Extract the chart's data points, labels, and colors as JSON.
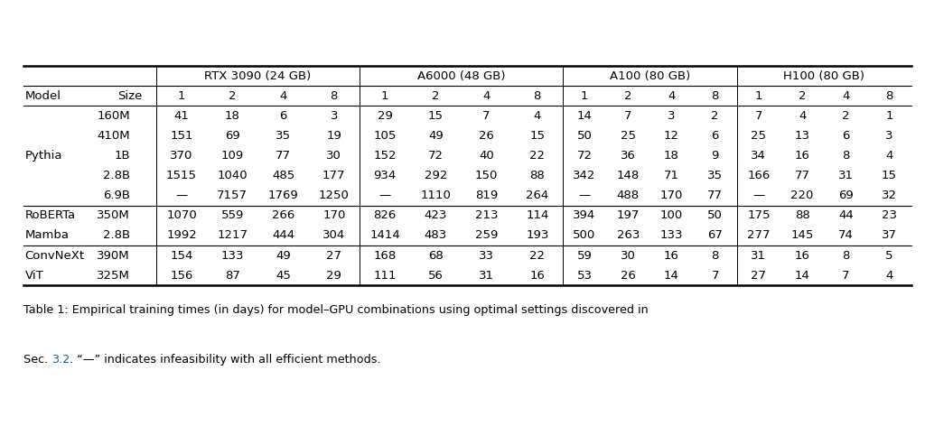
{
  "gpu_headers": [
    "RTX 3090 (24 GB)",
    "A6000 (48 GB)",
    "A100 (80 GB)",
    "H100 (80 GB)"
  ],
  "col_subheaders": [
    "1",
    "2",
    "4",
    "8"
  ],
  "rows": [
    {
      "model": "",
      "size": "160M",
      "vals": [
        "41",
        "18",
        "6",
        "3",
        "29",
        "15",
        "7",
        "4",
        "14",
        "7",
        "3",
        "2",
        "7",
        "4",
        "2",
        "1"
      ]
    },
    {
      "model": "",
      "size": "410M",
      "vals": [
        "151",
        "69",
        "35",
        "19",
        "105",
        "49",
        "26",
        "15",
        "50",
        "25",
        "12",
        "6",
        "25",
        "13",
        "6",
        "3"
      ]
    },
    {
      "model": "Pythia",
      "size": "1B",
      "vals": [
        "370",
        "109",
        "77",
        "30",
        "152",
        "72",
        "40",
        "22",
        "72",
        "36",
        "18",
        "9",
        "34",
        "16",
        "8",
        "4"
      ]
    },
    {
      "model": "",
      "size": "2.8B",
      "vals": [
        "1515",
        "1040",
        "485",
        "177",
        "934",
        "292",
        "150",
        "88",
        "342",
        "148",
        "71",
        "35",
        "166",
        "77",
        "31",
        "15"
      ]
    },
    {
      "model": "",
      "size": "6.9B",
      "vals": [
        "—",
        "7157",
        "1769",
        "1250",
        "—",
        "1110",
        "819",
        "264",
        "—",
        "488",
        "170",
        "77",
        "—",
        "220",
        "69",
        "32"
      ]
    },
    {
      "model": "RoBERTa",
      "size": "350M",
      "vals": [
        "1070",
        "559",
        "266",
        "170",
        "826",
        "423",
        "213",
        "114",
        "394",
        "197",
        "100",
        "50",
        "175",
        "88",
        "44",
        "23"
      ]
    },
    {
      "model": "Mamba",
      "size": "2.8B",
      "vals": [
        "1992",
        "1217",
        "444",
        "304",
        "1414",
        "483",
        "259",
        "193",
        "500",
        "263",
        "133",
        "67",
        "277",
        "145",
        "74",
        "37"
      ]
    },
    {
      "model": "ConvNeXt",
      "size": "390M",
      "vals": [
        "154",
        "133",
        "49",
        "27",
        "168",
        "68",
        "33",
        "22",
        "59",
        "30",
        "16",
        "8",
        "31",
        "16",
        "8",
        "5"
      ]
    },
    {
      "model": "ViT",
      "size": "325M",
      "vals": [
        "156",
        "87",
        "45",
        "29",
        "111",
        "56",
        "31",
        "16",
        "53",
        "26",
        "14",
        "7",
        "27",
        "14",
        "7",
        "4"
      ]
    }
  ],
  "group_sep_after_row": [
    4,
    6
  ],
  "cap1": "Table 1: Empirical training times (in days) for model–GPU combinations using optimal settings discovered in",
  "cap2_before": "Sec. ",
  "cap2_link": "3.2",
  "cap2_after": ". “—” indicates infeasibility with all efficient methods.",
  "background_color": "#ffffff",
  "caption_link_color": "#1a5fa8",
  "font_size": 9.5,
  "caption_font_size": 9.2
}
